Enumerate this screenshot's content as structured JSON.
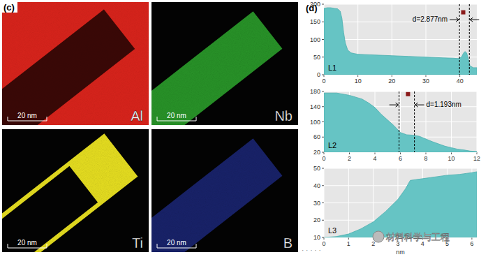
{
  "figure_label_maps": "(c)",
  "figure_label_profiles": "(d)",
  "maps": [
    {
      "element": "Al",
      "color": "#d8231b",
      "scale_bar": "20 nm"
    },
    {
      "element": "Nb",
      "color": "#2fae2f",
      "scale_bar": "20 nm"
    },
    {
      "element": "Ti",
      "color": "#e8e020",
      "scale_bar": "20 nm"
    },
    {
      "element": "B",
      "color": "#2a3cc0",
      "scale_bar": "20 nm"
    }
  ],
  "watermark": "材料科学与工程",
  "ellipsis": "· · · · ·",
  "chart_data": [
    {
      "type": "area",
      "label": "L1",
      "color": "#66c4c4",
      "grid": true,
      "x": [
        0,
        1,
        2,
        3,
        4,
        4.8,
        5.3,
        5.8,
        6.3,
        7,
        8,
        9,
        10,
        15,
        20,
        25,
        30,
        35,
        38,
        39.5,
        40.5,
        41,
        41.5,
        42,
        42.5,
        43,
        44,
        45
      ],
      "values": [
        188,
        190,
        190,
        188,
        187,
        180,
        160,
        120,
        90,
        70,
        62,
        60,
        58,
        56,
        54,
        52,
        50,
        48,
        47,
        46,
        50,
        60,
        66,
        62,
        45,
        25,
        20,
        20
      ],
      "xlim": [
        0,
        45
      ],
      "ylim": [
        0,
        200
      ],
      "xticks": [
        0,
        10,
        20,
        30,
        40
      ],
      "yticks": [
        0,
        50,
        100,
        150,
        200
      ],
      "annotations": [
        {
          "text": "d=2.877nm",
          "x1": 39.9,
          "x2": 42.8
        }
      ],
      "points": [
        {
          "x": 41,
          "y": 177
        }
      ]
    },
    {
      "type": "area",
      "label": "L2",
      "color": "#66c4c4",
      "grid": true,
      "x": [
        0,
        1,
        2,
        3,
        3.5,
        4,
        4.5,
        5,
        5.5,
        6,
        6.5,
        7,
        7.5,
        8,
        8.5,
        9,
        9.5,
        10,
        10.5,
        11,
        11.5,
        12
      ],
      "values": [
        176,
        176,
        170,
        160,
        150,
        138,
        120,
        105,
        90,
        72,
        66,
        65,
        62,
        55,
        48,
        42,
        36,
        32,
        28,
        26,
        23,
        22
      ],
      "xlim": [
        0,
        12
      ],
      "ylim": [
        20,
        180
      ],
      "xticks": [
        0,
        2,
        4,
        6,
        8,
        10,
        12
      ],
      "yticks": [
        20,
        60,
        100,
        140,
        180
      ],
      "annotations": [
        {
          "text": "d=1.193nm",
          "x1": 5.9,
          "x2": 7.1
        }
      ],
      "points": [
        {
          "x": 6.6,
          "y": 173
        }
      ]
    },
    {
      "type": "area",
      "label": "L3",
      "color": "#66c4c4",
      "grid": true,
      "x_label": "nm",
      "x": [
        0,
        0.5,
        1,
        1.5,
        2,
        2.5,
        3,
        3.3,
        3.5,
        4,
        4.5,
        5,
        5.5,
        6,
        6.2
      ],
      "values": [
        10,
        10.5,
        12,
        15,
        19,
        25,
        32,
        38,
        43,
        44,
        45,
        46,
        46.5,
        47.5,
        48
      ],
      "xlim": [
        0,
        6.2
      ],
      "ylim": [
        10,
        50
      ],
      "xticks": [
        0,
        1,
        2,
        3,
        4,
        5,
        6
      ],
      "yticks": [
        10,
        20,
        30,
        40,
        50
      ]
    }
  ]
}
